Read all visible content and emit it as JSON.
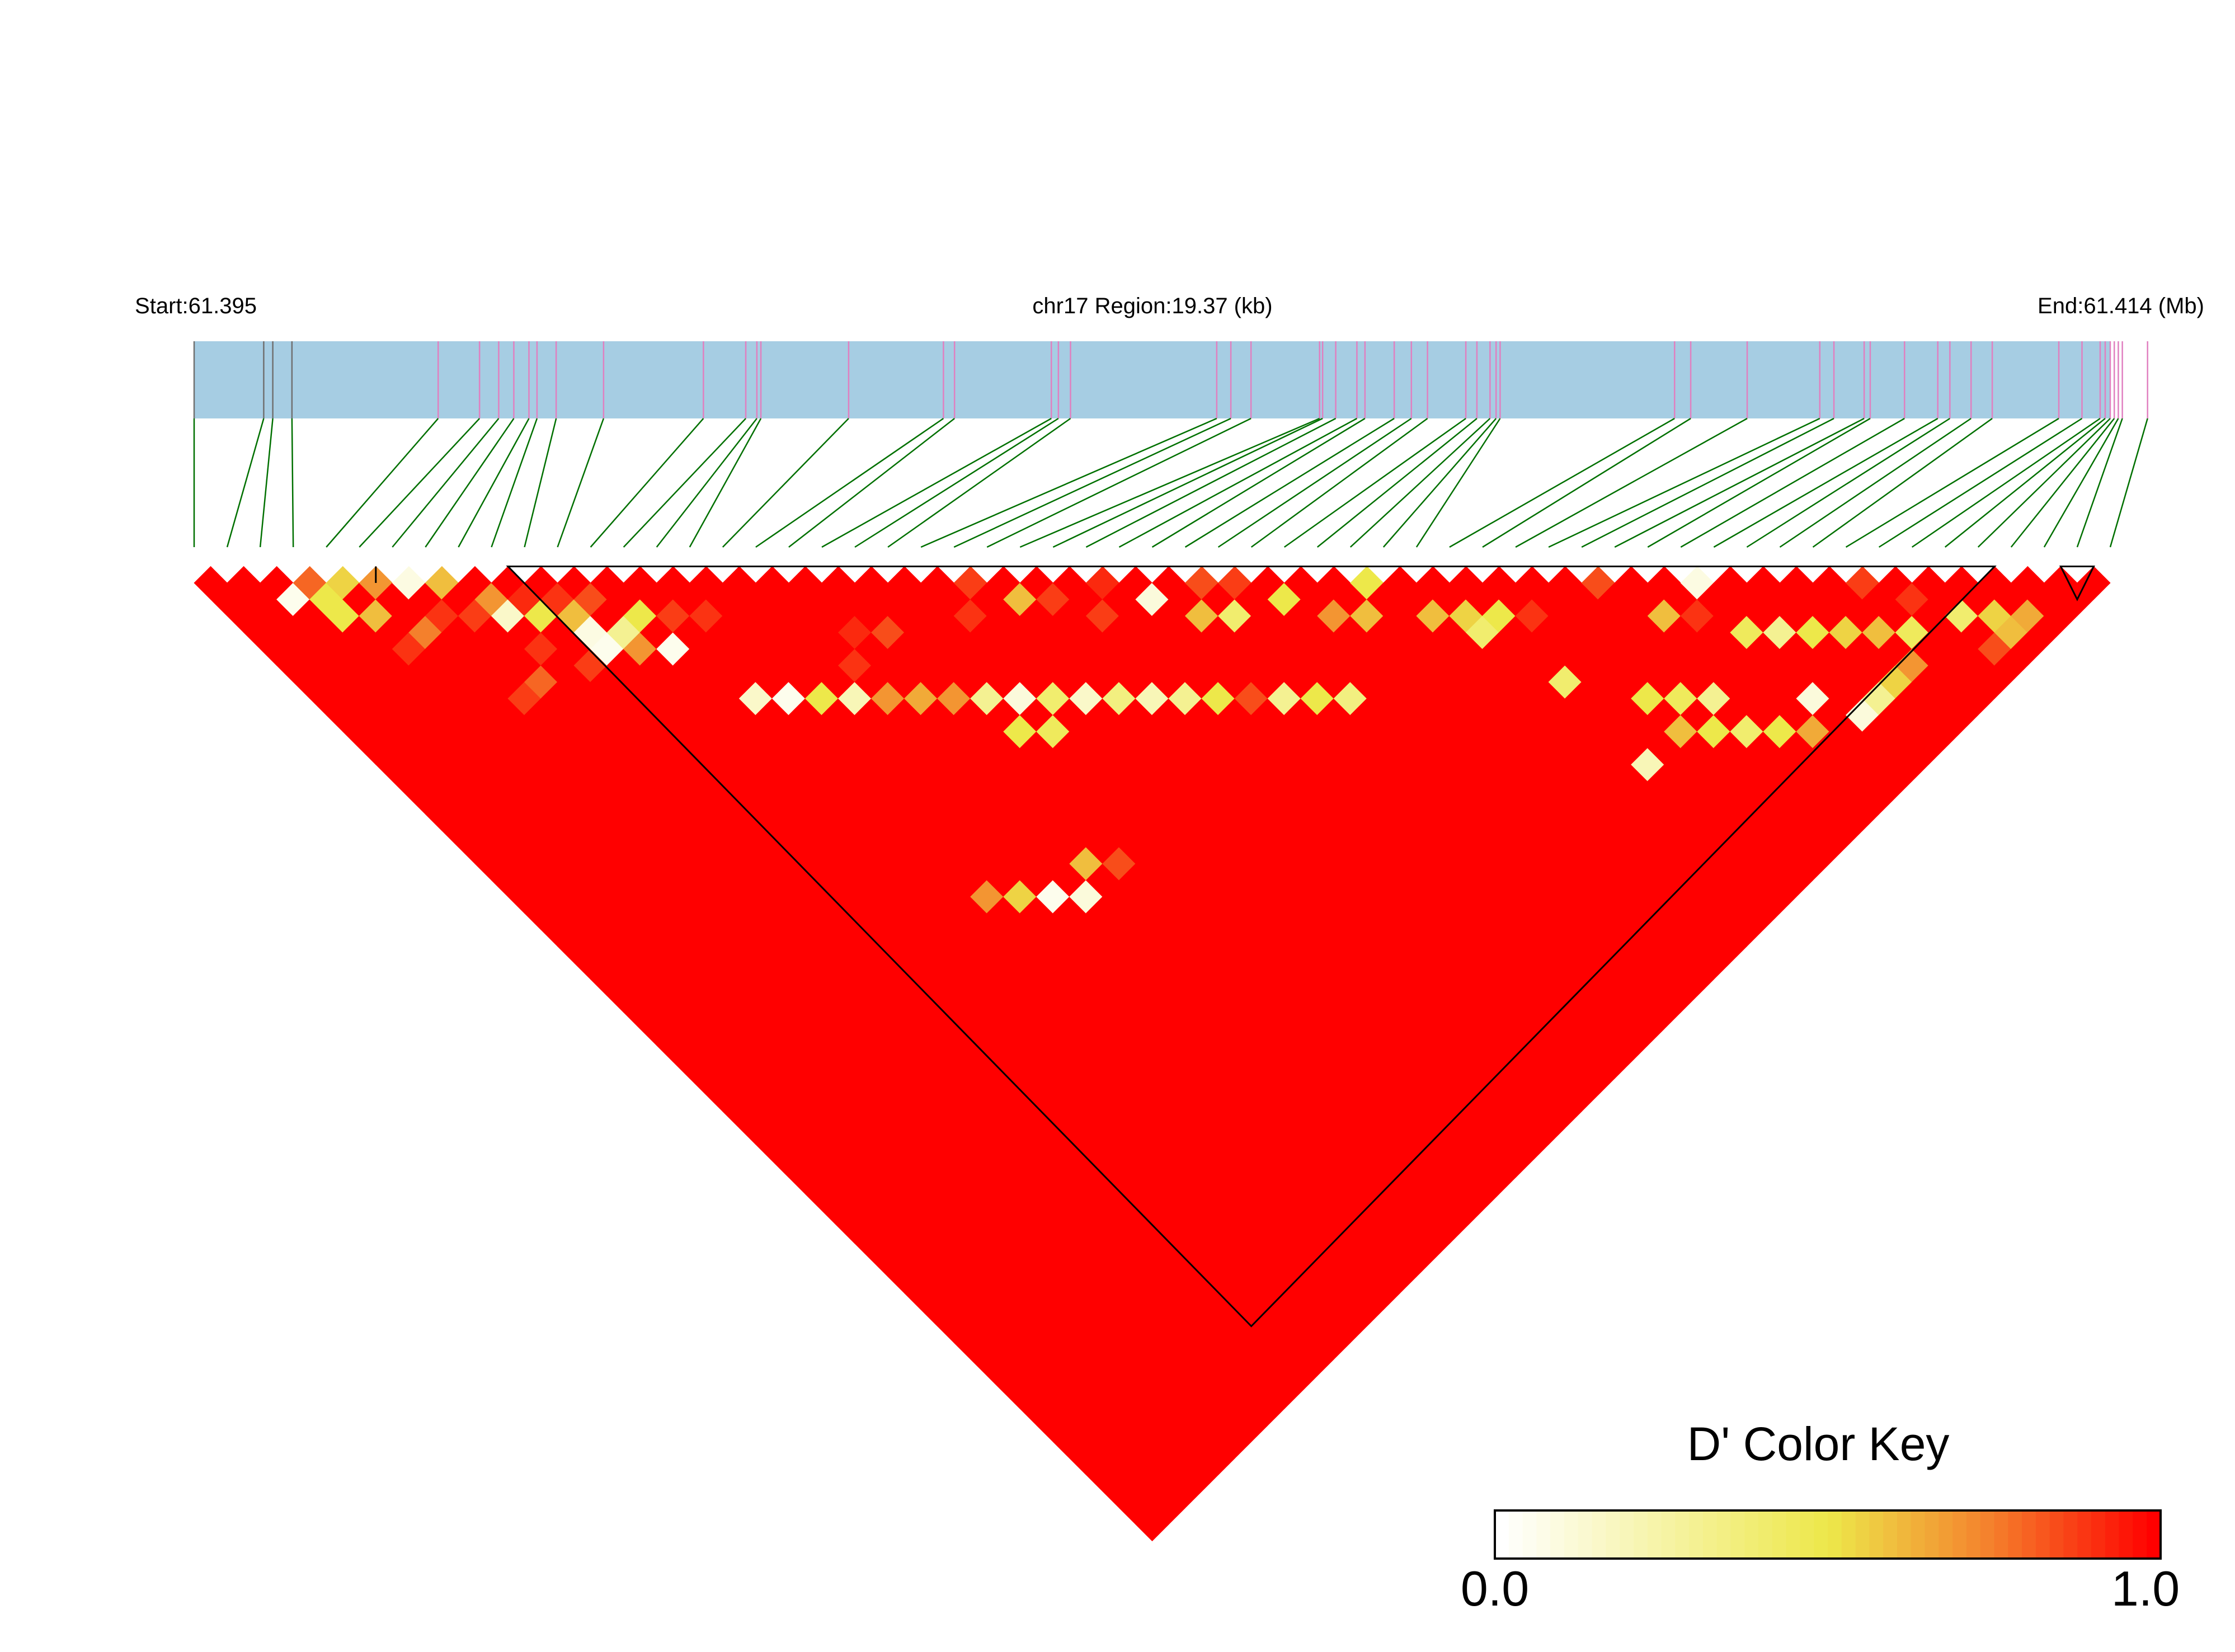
{
  "chart_data": {
    "type": "heatmap",
    "subtype": "linkage-disequilibrium-triangle",
    "header": {
      "start_label": "Start:61.395",
      "region_label": "chr17 Region:19.37 (kb)",
      "end_label": "End:61.414 (Mb)"
    },
    "region": {
      "chromosome": "chr17",
      "start_mb": 61.395,
      "end_mb": 61.414,
      "length_kb": 19.37
    },
    "snp_count": 59,
    "snp_positions_mb": [
      61.395,
      61.39569,
      61.39578,
      61.39597,
      61.39742,
      61.39783,
      61.39802,
      61.39817,
      61.39832,
      61.3984,
      61.39859,
      61.39906,
      61.40005,
      61.40047,
      61.40058,
      61.40062,
      61.40149,
      61.40243,
      61.40254,
      61.4035,
      61.40357,
      61.40369,
      61.40514,
      61.40528,
      61.40548,
      61.40616,
      61.40619,
      61.40632,
      61.40653,
      61.40661,
      61.4069,
      61.40707,
      61.40723,
      61.40761,
      61.40772,
      61.40785,
      61.40791,
      61.40795,
      61.40968,
      61.40984,
      61.4104,
      61.41112,
      61.41126,
      61.41156,
      61.41162,
      61.41196,
      61.41229,
      61.41241,
      61.41262,
      61.41283,
      61.41349,
      61.41372,
      61.4139,
      61.41395,
      61.414,
      61.41404,
      61.41408,
      61.41412,
      61.41437
    ],
    "neutral_snp_indices": [
      0,
      1,
      2,
      3
    ],
    "ld_blocks": [
      [
        5,
        6
      ],
      [
        9,
        55
      ],
      [
        56,
        58
      ]
    ],
    "default_d_prime": 1.0,
    "d_prime_values": [
      [
        3,
        4,
        0.8
      ],
      [
        3,
        5,
        0.5
      ],
      [
        4,
        5,
        0.55
      ],
      [
        5,
        6,
        0.7
      ],
      [
        7,
        8,
        0.6
      ],
      [
        2,
        4,
        0.05
      ],
      [
        3,
        6,
        0.5
      ],
      [
        8,
        10,
        0.7
      ],
      [
        6,
        7,
        0.08
      ],
      [
        5,
        9,
        0.75
      ],
      [
        4,
        7,
        0.6
      ],
      [
        8,
        11,
        0.15
      ],
      [
        9,
        12,
        0.5
      ],
      [
        10,
        13,
        0.6
      ],
      [
        10,
        14,
        0.08
      ],
      [
        11,
        13,
        0.85
      ],
      [
        10,
        15,
        0.05
      ],
      [
        11,
        15,
        0.3
      ],
      [
        12,
        15,
        0.5
      ],
      [
        11,
        16,
        0.7
      ],
      [
        12,
        17,
        0.05
      ],
      [
        6,
        14,
        0.88
      ],
      [
        7,
        14,
        0.8
      ],
      [
        13,
        21,
        0.15
      ],
      [
        14,
        22,
        0.05
      ],
      [
        15,
        23,
        0.5
      ],
      [
        16,
        24,
        0.2
      ],
      [
        17,
        25,
        0.7
      ],
      [
        18,
        26,
        0.65
      ],
      [
        19,
        27,
        0.7
      ],
      [
        20,
        28,
        0.3
      ],
      [
        21,
        29,
        0.1
      ],
      [
        22,
        30,
        0.4
      ],
      [
        23,
        31,
        0.15
      ],
      [
        24,
        32,
        0.35
      ],
      [
        25,
        33,
        0.2
      ],
      [
        26,
        34,
        0.3
      ],
      [
        27,
        35,
        0.5
      ],
      [
        28,
        36,
        0.85
      ],
      [
        29,
        37,
        0.3
      ],
      [
        30,
        38,
        0.5
      ],
      [
        31,
        39,
        0.35
      ],
      [
        18,
        36,
        0.6
      ],
      [
        19,
        37,
        0.85
      ],
      [
        20,
        30,
        0.5
      ],
      [
        21,
        31,
        0.45
      ],
      [
        14,
        34,
        0.7
      ],
      [
        15,
        35,
        0.55
      ],
      [
        16,
        36,
        0.05
      ],
      [
        17,
        37,
        0.1
      ],
      [
        36,
        39,
        0.6
      ],
      [
        37,
        40,
        0.55
      ],
      [
        38,
        41,
        0.5
      ],
      [
        37,
        41,
        0.4
      ],
      [
        45,
        49,
        0.45
      ],
      [
        46,
        50,
        0.3
      ],
      [
        47,
        51,
        0.5
      ],
      [
        48,
        52,
        0.55
      ],
      [
        49,
        53,
        0.6
      ],
      [
        50,
        54,
        0.45
      ],
      [
        45,
        53,
        0.1
      ],
      [
        44,
        54,
        0.65
      ],
      [
        43,
        53,
        0.5
      ],
      [
        42,
        52,
        0.4
      ],
      [
        41,
        51,
        0.5
      ],
      [
        40,
        50,
        0.6
      ],
      [
        52,
        55,
        0.4
      ],
      [
        53,
        56,
        0.55
      ],
      [
        54,
        57,
        0.65
      ],
      [
        53,
        57,
        0.6
      ],
      [
        52,
        57,
        0.85
      ],
      [
        49,
        55,
        0.7
      ],
      [
        48,
        55,
        0.55
      ],
      [
        47,
        55,
        0.3
      ],
      [
        46,
        55,
        0.1
      ],
      [
        38,
        45,
        0.4
      ],
      [
        38,
        50,
        0.2
      ],
      [
        40,
        48,
        0.5
      ],
      [
        41,
        49,
        0.45
      ],
      [
        42,
        50,
        0.3
      ],
      [
        23,
        24,
        0.88
      ],
      [
        24,
        26,
        0.6
      ],
      [
        30,
        31,
        0.85
      ],
      [
        29,
        32,
        0.6
      ],
      [
        19,
        23,
        0.85
      ],
      [
        28,
        30,
        0.1
      ],
      [
        30,
        33,
        0.4
      ],
      [
        32,
        34,
        0.5
      ],
      [
        18,
        22,
        0.92
      ],
      [
        17,
        23,
        0.9
      ],
      [
        33,
        36,
        0.7
      ],
      [
        35,
        36,
        0.5
      ],
      [
        34,
        37,
        0.6
      ],
      [
        42,
        43,
        0.85
      ],
      [
        43,
        46,
        0.6
      ],
      [
        45,
        46,
        0.08
      ],
      [
        13,
        16,
        0.88
      ],
      [
        14,
        17,
        0.9
      ],
      [
        10,
        12,
        0.9
      ],
      [
        9,
        11,
        0.92
      ],
      [
        22,
        25,
        0.9
      ],
      [
        26,
        29,
        0.88
      ],
      [
        27,
        28,
        0.92
      ],
      [
        31,
        32,
        0.88
      ],
      [
        39,
        42,
        0.9
      ],
      [
        44,
        47,
        0.9
      ],
      [
        50,
        51,
        0.88
      ],
      [
        51,
        53,
        0.9
      ],
      [
        25,
        27,
        0.88
      ],
      [
        6,
        9,
        0.9
      ],
      [
        7,
        10,
        0.88
      ],
      [
        4,
        9,
        0.9
      ],
      [
        8,
        13,
        0.9
      ],
      [
        9,
        15,
        0.88
      ]
    ],
    "color_key": {
      "title": "D' Color Key",
      "min_label": "0.0",
      "max_label": "1.0",
      "range": [
        0.0,
        1.0
      ],
      "stops": [
        {
          "value": 0.0,
          "color": "#ffffff"
        },
        {
          "value": 0.5,
          "color": "#ede84a"
        },
        {
          "value": 0.75,
          "color": "#f4802c"
        },
        {
          "value": 1.0,
          "color": "#ff0000"
        }
      ]
    },
    "colors": {
      "gene_bar": "#a6cde3",
      "snp_tick_normal": "#e080c0",
      "snp_tick_neutral": "#707070",
      "connector": "#007000"
    }
  }
}
